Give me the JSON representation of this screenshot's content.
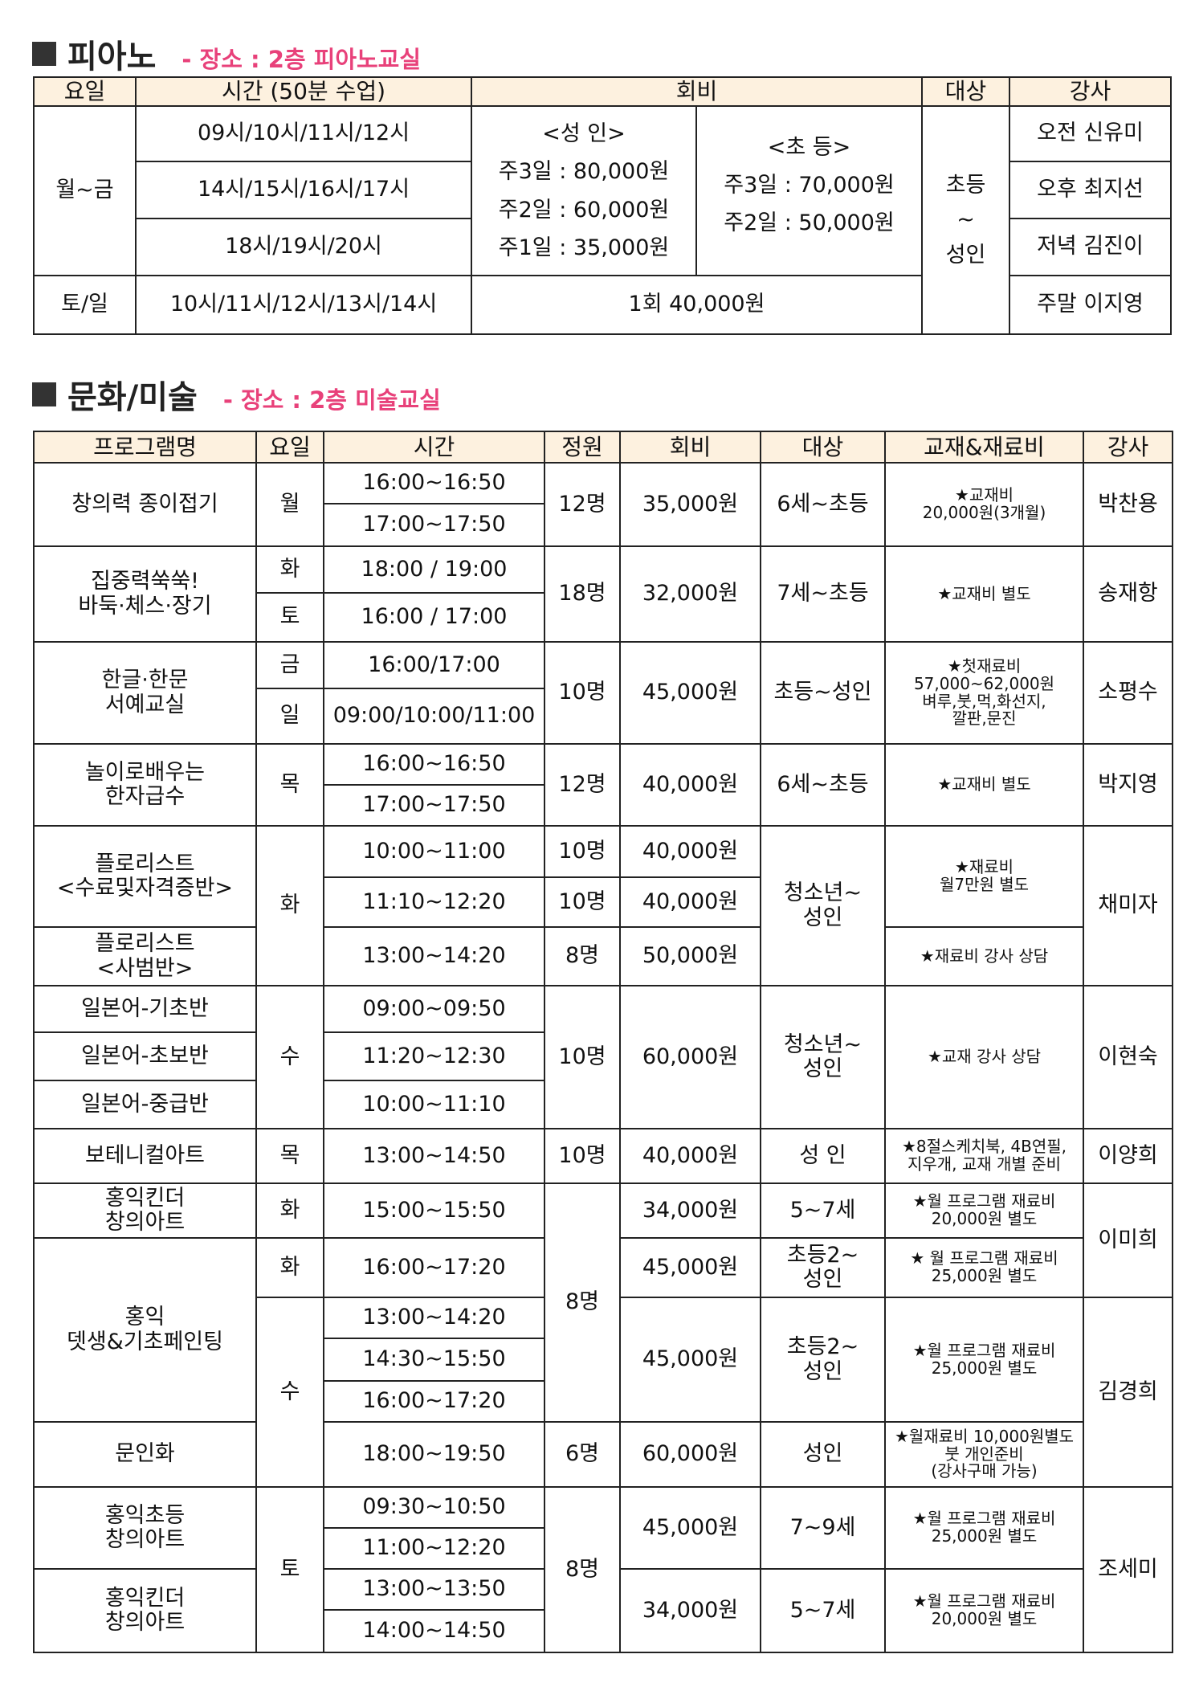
{
  "piano": {
    "title": "피아노",
    "location": "- 장소 : 2층 피아노교실",
    "headers": [
      "요일",
      "시간 (50분 수업)",
      "회비",
      "대상",
      "강사"
    ],
    "weekday": "월~금",
    "weekend": "토/일",
    "times": [
      "09시/10시/11시/12시",
      "14시/15시/16시/17시",
      "18시/19시/20시",
      "10시/11시/12시/13시/14시"
    ],
    "fee_adult": "<성 인>\n주3일 : 80,000원\n주2일 : 60,000원\n주1일 : 35,000원",
    "fee_child": "<초 등>\n주3일 : 70,000원\n주2일 : 50,000원",
    "fee_weekend": "1회 40,000원",
    "target": "초등\n~\n성인",
    "instructors": [
      "오전 신유미",
      "오후 최지선",
      "저녁 김진이",
      "주말 이지영"
    ]
  },
  "art": {
    "title": "문화/미술",
    "location": "- 장소 : 2층 미술교실",
    "headers": [
      "프로그램명",
      "요일",
      "시간",
      "정원",
      "회비",
      "대상",
      "교재&재료비",
      "강사"
    ],
    "rows": [
      {
        "program": "창의력 종이접기",
        "day": "월",
        "time": "16:00~16:50",
        "capacity": "12명",
        "fee": "35,000원",
        "target": "6세~초등",
        "materials": "★교재비\n20,000원(3개월)",
        "instructor": "박찬용"
      },
      {
        "time": "17:00~17:50"
      },
      {
        "program": "집중력쑥쑥!\n바둑·체스·장기",
        "day": "화",
        "time": "18:00 / 19:00",
        "capacity": "18명",
        "fee": "32,000원",
        "target": "7세~초등",
        "materials": "★교재비 별도",
        "instructor": "송재항"
      },
      {
        "day": "토",
        "time": "16:00 / 17:00"
      },
      {
        "program": "한글·한문\n서예교실",
        "day": "금",
        "time": "16:00/17:00",
        "capacity": "10명",
        "fee": "45,000원",
        "target": "초등~성인",
        "materials": "★첫재료비\n57,000~62,000원\n벼루,붓,먹,화선지,\n깔판,문진",
        "instructor": "소평수"
      },
      {
        "day": "일",
        "time": "09:00/10:00/11:00"
      },
      {
        "program": "놀이로배우는\n한자급수",
        "day": "목",
        "time": "16:00~16:50",
        "capacity": "12명",
        "fee": "40,000원",
        "target": "6세~초등",
        "materials": "★교재비 별도",
        "instructor": "박지영"
      },
      {
        "time": "17:00~17:50"
      },
      {
        "program": "플로리스트\n<수료및자격증반>",
        "day": "화",
        "time": "10:00~11:00",
        "capacity": "10명",
        "fee": "40,000원",
        "target": "청소년~\n성인",
        "materials": "★재료비\n월7만원 별도",
        "instructor": "채미자"
      },
      {
        "time": "11:10~12:20",
        "capacity": "10명",
        "fee": "40,000원"
      },
      {
        "program": "플로리스트\n<사범반>",
        "time": "13:00~14:20",
        "capacity": "8명",
        "fee": "50,000원",
        "materials": "★재료비 강사 상담"
      },
      {
        "program": "일본어-기초반",
        "day": "수",
        "time": "09:00~09:50",
        "capacity": "10명",
        "fee": "60,000원",
        "target": "청소년~\n성인",
        "materials": "★교재 강사 상담",
        "instructor": "이현숙"
      },
      {
        "program": "일본어-초보반",
        "time": "11:20~12:30"
      },
      {
        "program": "일본어-중급반",
        "time": "10:00~11:10"
      },
      {
        "program": "보테니컬아트",
        "day": "목",
        "time": "13:00~14:50",
        "capacity": "10명",
        "fee": "40,000원",
        "target": "성 인",
        "materials": "★8절스케치북, 4B연필,\n지우개, 교재 개별 준비",
        "instructor": "이양희"
      },
      {
        "program": "홍익킨더\n창의아트",
        "day": "화",
        "time": "15:00~15:50",
        "capacity": "8명",
        "fee": "34,000원",
        "target": "5~7세",
        "materials": "★월 프로그램 재료비\n20,000원 별도",
        "instructor": "이미희"
      },
      {
        "program": "홍익\n뎃생&기초페인팅",
        "day": "화",
        "time": "16:00~17:20",
        "fee": "45,000원",
        "target": "초등2~\n성인",
        "materials": "★ 월 프로그램 재료비\n25,000원 별도"
      },
      {
        "day": "수",
        "time": "13:00~14:20",
        "fee": "45,000원",
        "target": "초등2~\n성인",
        "materials": "★월 프로그램 재료비\n25,000원 별도",
        "instructor": "김경희"
      },
      {
        "time": "14:30~15:50"
      },
      {
        "time": "16:00~17:20"
      },
      {
        "program": "문인화",
        "time": "18:00~19:50",
        "capacity": "6명",
        "fee": "60,000원",
        "target": "성인",
        "materials": "★월재료비 10,000원별도\n붓 개인준비\n(강사구매 가능)"
      },
      {
        "program": "홍익초등\n창의아트",
        "day": "토",
        "time": "09:30~10:50",
        "capacity": "8명",
        "fee": "45,000원",
        "target": "7~9세",
        "materials": "★월 프로그램 재료비\n25,000원 별도",
        "instructor": "조세미"
      },
      {
        "time": "11:00~12:20"
      },
      {
        "program": "홍익킨더\n창의아트",
        "time": "13:00~13:50",
        "fee": "34,000원",
        "target": "5~7세",
        "materials": "★월 프로그램 재료비\n20,000원 별도"
      },
      {
        "time": "14:00~14:50"
      }
    ]
  },
  "colors": {
    "accent": "#e8417a",
    "header_bg": "#fdf1df",
    "border": "#222222"
  }
}
